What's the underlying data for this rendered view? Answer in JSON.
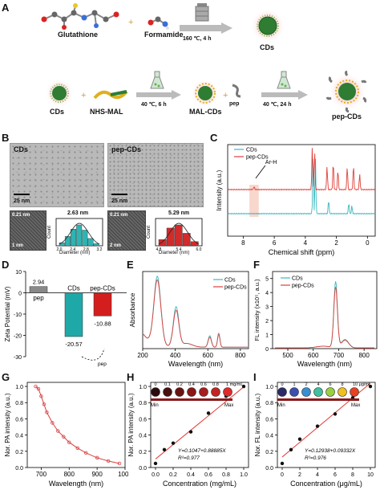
{
  "panels": {
    "a": {
      "label": "A",
      "glutathione": "Glutathione",
      "formamide": "Formamide",
      "reaction1": "160 ℃, 4 h",
      "cds": "CDs",
      "nhs_mal": "NHS-MAL",
      "reaction2": "40 ℃, 6 h",
      "mal_cds": "MAL-CDs",
      "pep": "pep",
      "reaction3": "40 ℃, 24 h",
      "pep_cds": "pep-CDs"
    },
    "b": {
      "label": "B",
      "left_title": "CDs",
      "right_title": "pep-CDs",
      "scale_25": "25 nm",
      "lattice": "0.21 nm",
      "scale_1": "1 nm",
      "scale_2": "2 nm",
      "left_mean": "2.63 nm",
      "right_mean": "5.29 nm",
      "count_label": "Count",
      "diameter_label": "Diameter (nm)",
      "left_ticks": [
        "2.0",
        "2.4",
        "2.8",
        "3.2"
      ],
      "right_ticks": [
        "4.8",
        "5.4",
        "6.0"
      ]
    },
    "c": {
      "label": "C",
      "legend": [
        "CDs",
        "pep-CDs"
      ],
      "annotation": "Ar-H",
      "ylabel": "Intensity (a.u.)",
      "xlabel": "Chemical shift (ppm)",
      "xticks": [
        "8",
        "6",
        "4",
        "2",
        "0"
      ]
    },
    "d": {
      "label": "D",
      "ylabel": "Zeta Potential (mV)",
      "pep_label": "pep",
      "cds_label": "CDs",
      "pepcds_label": "pep-CDs",
      "arrow_label": "pep",
      "yticks": [
        "10",
        "0",
        "-10",
        "-20",
        "-30"
      ]
    },
    "e": {
      "label": "E",
      "legend": [
        "CDs",
        "pep-CDs"
      ],
      "ylabel": "Absorbance",
      "xlabel": "Wavelength (nm)",
      "xticks": [
        "200",
        "400",
        "600",
        "800"
      ]
    },
    "f": {
      "label": "F",
      "legend": [
        "CDs",
        "pep-CDs"
      ],
      "ylabel": "FL intensity (x10⁵, a.u.)",
      "xlabel": "Wavelength (nm)",
      "xticks": [
        "500",
        "600",
        "700",
        "800"
      ],
      "yticks": [
        "0",
        "1",
        "2",
        "3",
        "4",
        "5"
      ]
    },
    "g": {
      "label": "G",
      "ylabel": "Nor. PA intensity (a.u.)",
      "xlabel": "Wavelength (nm)",
      "xticks": [
        "700",
        "800",
        "900",
        "1000"
      ],
      "yticks": [
        "0.0",
        "0.2",
        "0.4",
        "0.6",
        "0.8",
        "1.0"
      ]
    },
    "h": {
      "label": "H",
      "ylabel": "Nor. PA intensity (a.u.)",
      "xlabel": "Concentration (mg/mL)",
      "xticks": [
        "0.0",
        "0.2",
        "0.4",
        "0.6",
        "0.8",
        "1.0"
      ],
      "yticks": [
        "0.0",
        "0.2",
        "0.4",
        "0.6",
        "0.8",
        "1.0"
      ],
      "conc_labels": [
        "0",
        "0.1",
        "0.2",
        "0.4",
        "0.6",
        "0.8",
        "1 mg/mL"
      ],
      "min": "Min",
      "max": "Max",
      "equation": "Y=0.1047+0.88885X",
      "r2": "R²=0.977"
    },
    "i": {
      "label": "I",
      "ylabel": "Nor. FL intensity (a.u.)",
      "xlabel": "Concentration (μg/mL)",
      "xticks": [
        "0",
        "2",
        "4",
        "6",
        "8",
        "10"
      ],
      "yticks": [
        "0.0",
        "0.2",
        "0.4",
        "0.6",
        "0.8",
        "1.0"
      ],
      "conc_labels": [
        "0",
        "1",
        "2",
        "4",
        "6",
        "8",
        "10 μg/mL"
      ],
      "min": "Min",
      "max": "Max",
      "equation": "Y=0.12938+0.09332X",
      "r2": "R²=0.976"
    }
  },
  "chart_data": [
    {
      "panel": "B-left-hist",
      "type": "bar",
      "categories": [
        "2.0",
        "2.2",
        "2.4",
        "2.6",
        "2.8",
        "3.0",
        "3.2"
      ],
      "values": [
        0.15,
        0.45,
        0.8,
        1.0,
        0.75,
        0.35,
        0.1
      ],
      "color": "#2fb3b3"
    },
    {
      "panel": "B-right-hist",
      "type": "bar",
      "categories": [
        "4.8",
        "5.1",
        "5.4",
        "5.7",
        "6.0"
      ],
      "values": [
        0.3,
        0.85,
        1.0,
        0.6,
        0.2
      ],
      "color": "#d32a2a"
    },
    {
      "panel": "D",
      "type": "bar",
      "categories": [
        "pep",
        "CDs",
        "pep-CDs"
      ],
      "values": [
        2.94,
        -20.57,
        -10.88
      ],
      "ylim": [
        -30,
        10
      ],
      "colors": [
        "#888888",
        "#1fa8a8",
        "#d41e1e"
      ]
    },
    {
      "panel": "H",
      "type": "scatter",
      "x": [
        0,
        0.1,
        0.2,
        0.4,
        0.6,
        0.8,
        1.0
      ],
      "y": [
        0.05,
        0.22,
        0.3,
        0.44,
        0.67,
        0.88,
        1.0
      ],
      "fit": {
        "intercept": 0.1047,
        "slope": 0.88885
      },
      "xlim": [
        0,
        1.0
      ],
      "ylim": [
        0,
        1.05
      ]
    },
    {
      "panel": "I",
      "type": "scatter",
      "x": [
        0,
        1,
        2,
        4,
        6,
        8,
        10
      ],
      "y": [
        0.05,
        0.22,
        0.35,
        0.51,
        0.66,
        0.86,
        1.0
      ],
      "fit": {
        "intercept": 0.12938,
        "slope": 0.09332
      },
      "xlim": [
        0,
        10
      ],
      "ylim": [
        0,
        1.05
      ]
    },
    {
      "panel": "G",
      "type": "line",
      "x": [
        680,
        690,
        700,
        710,
        720,
        740,
        760,
        780,
        800,
        830,
        860,
        900,
        940,
        980
      ],
      "y": [
        1.0,
        0.97,
        0.88,
        0.78,
        0.68,
        0.55,
        0.45,
        0.38,
        0.31,
        0.24,
        0.18,
        0.12,
        0.08,
        0.05
      ],
      "xlim": [
        650,
        1000
      ],
      "ylim": [
        0,
        1.05
      ],
      "color": "#d94040"
    }
  ]
}
